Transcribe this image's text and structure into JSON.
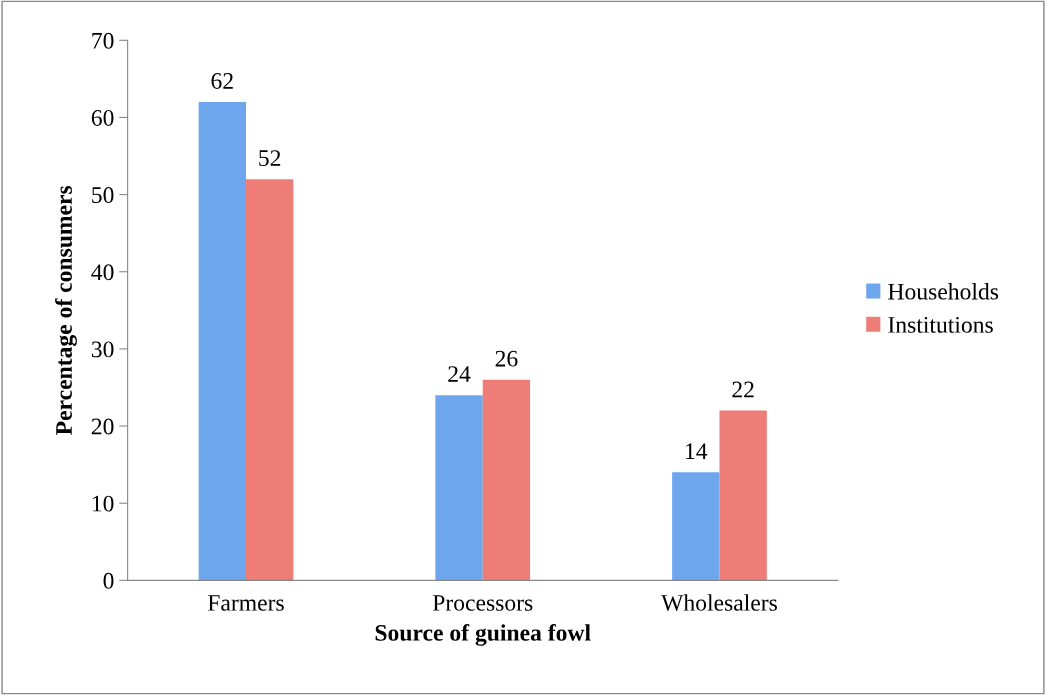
{
  "chart_data": {
    "type": "bar",
    "xlabel": "Source of guinea fowl",
    "ylabel": "Percentage of consumers",
    "categories": [
      "Farmers",
      "Processors",
      "Wholesalers"
    ],
    "series": [
      {
        "name": "Households",
        "color": "#6ea6ee",
        "values": [
          62,
          24,
          14
        ]
      },
      {
        "name": "Institutions",
        "color": "#ee7d77",
        "values": [
          52,
          26,
          22
        ]
      }
    ],
    "ylim": [
      0,
      70
    ],
    "yticks": [
      0,
      10,
      20,
      30,
      40,
      50,
      60,
      70
    ],
    "grid": false,
    "legend": "right",
    "data_labels": true
  }
}
